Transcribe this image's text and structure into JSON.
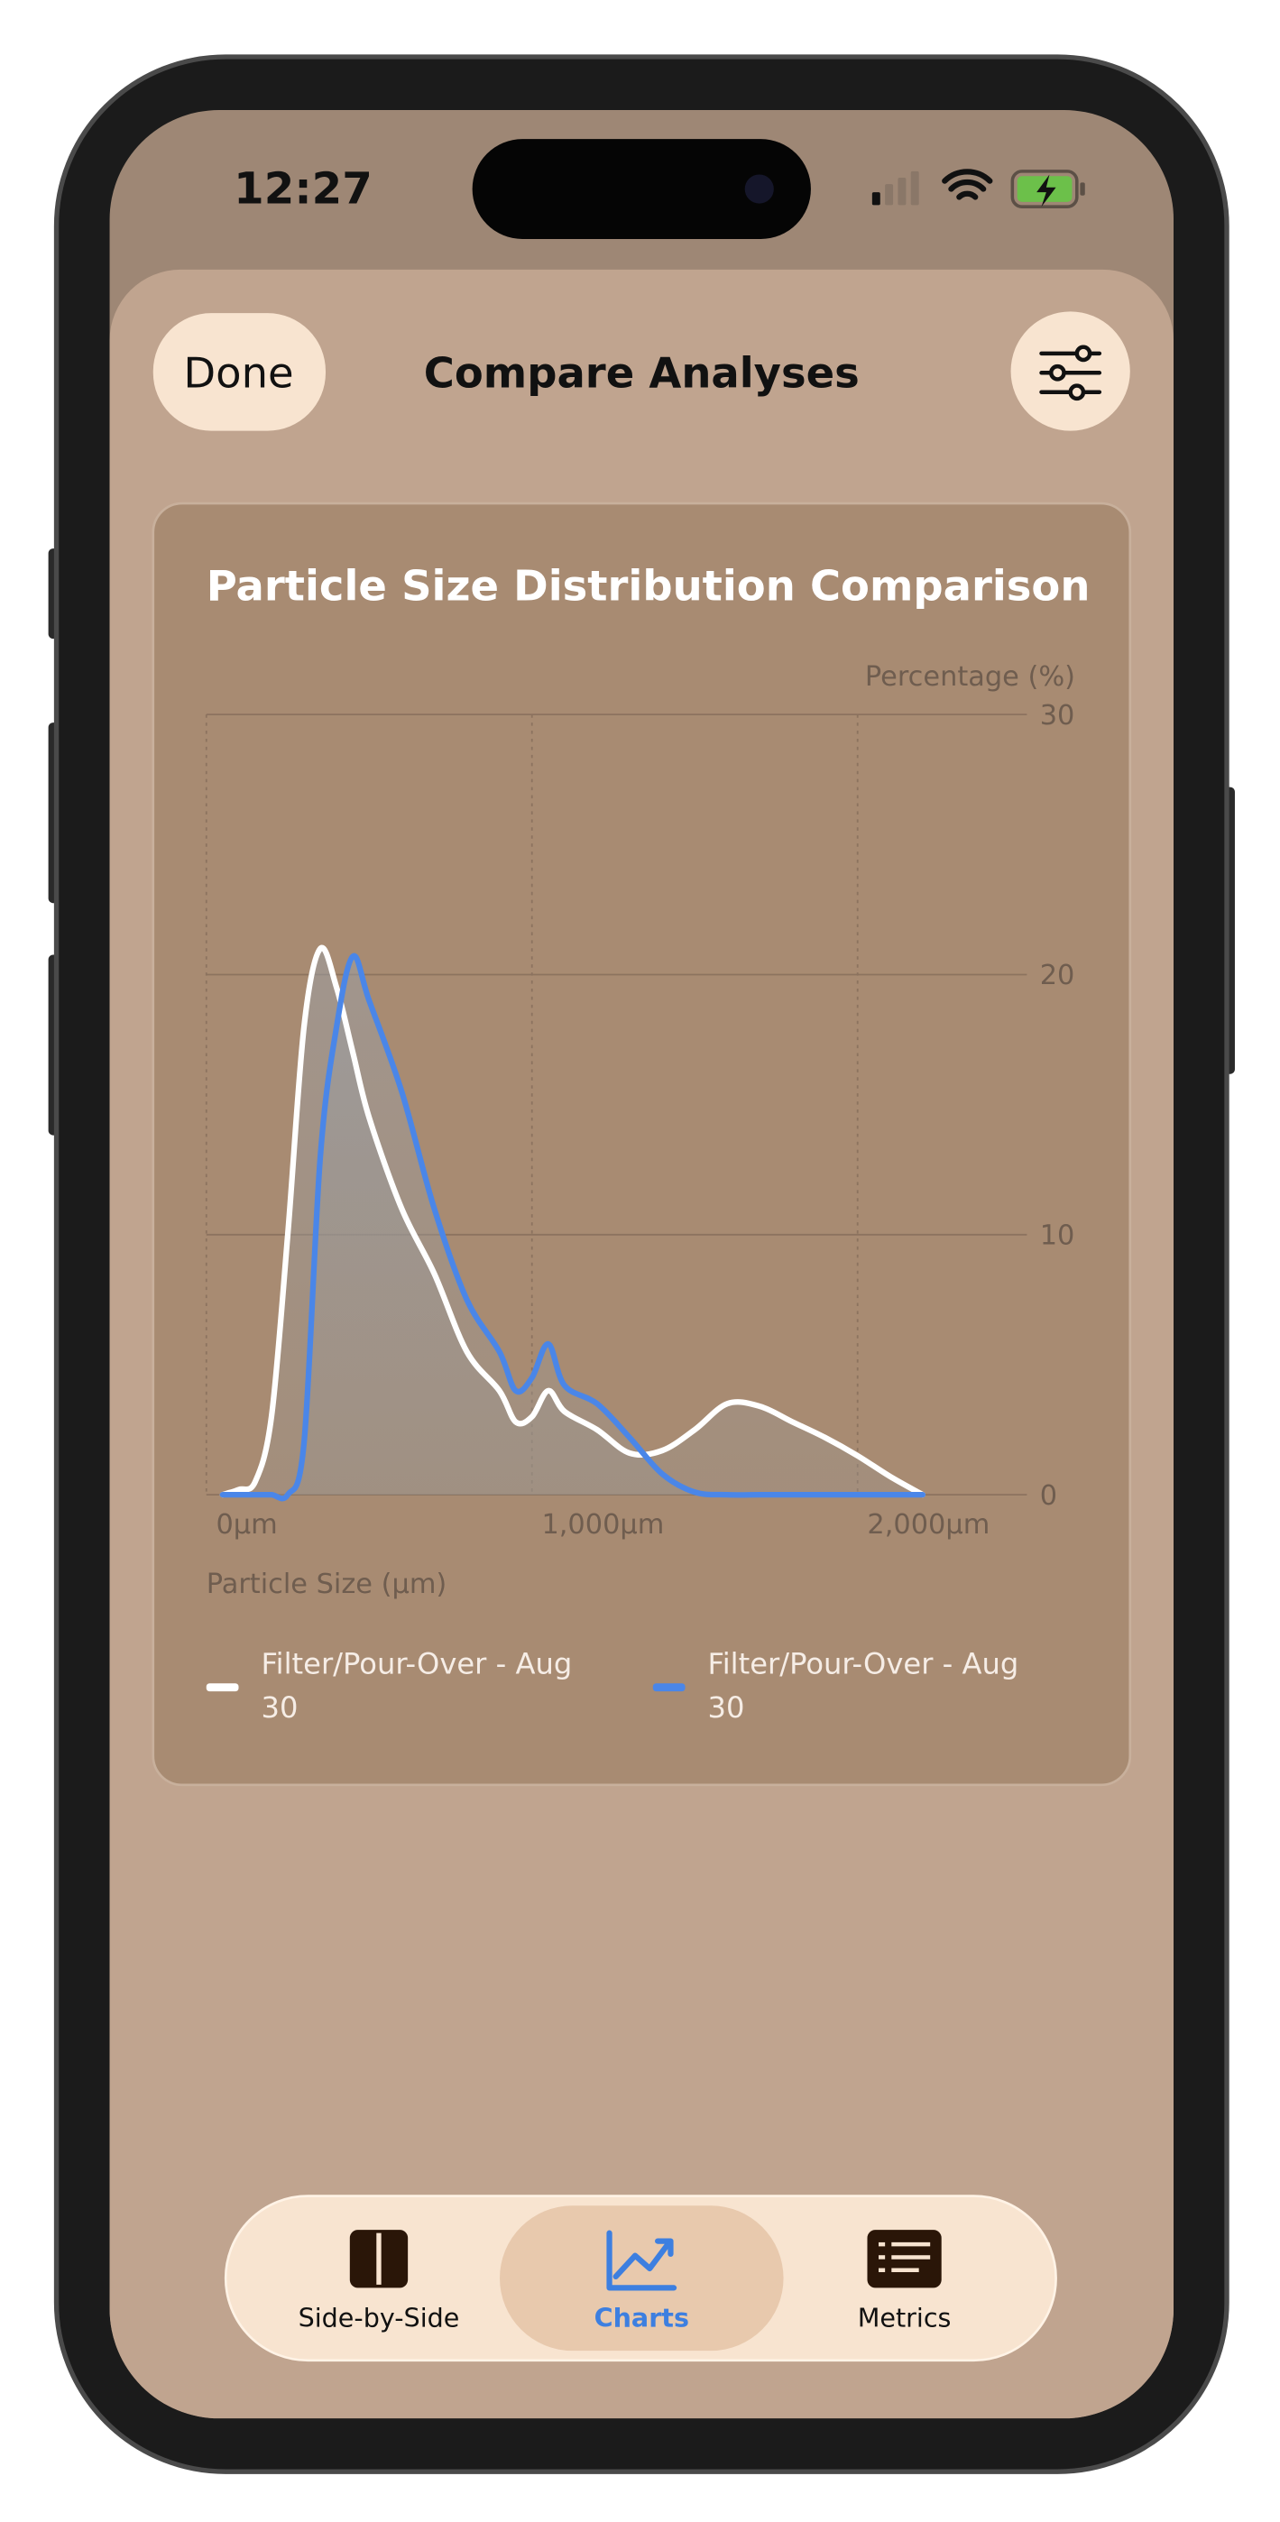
{
  "status_bar": {
    "time": "12:27"
  },
  "nav": {
    "done": "Done",
    "title": "Compare Analyses"
  },
  "chart_data": {
    "type": "line",
    "title": "Particle Size Distribution Comparison",
    "y_label": "Percentage (%)",
    "x_label": "Particle Size (µm)",
    "x": [
      50,
      100,
      150,
      200,
      250,
      300,
      350,
      400,
      450,
      500,
      600,
      700,
      800,
      900,
      950,
      1000,
      1050,
      1100,
      1200,
      1300,
      1400,
      1500,
      1600,
      1700,
      1800,
      1900,
      2000,
      2100,
      2200
    ],
    "series": [
      {
        "name": "Filter/Pour-Over - Aug 30",
        "color": "#ffffff",
        "values": [
          0,
          0.2,
          0.5,
          3,
          10,
          18,
          21,
          19.5,
          17,
          14.5,
          11,
          8.5,
          5.5,
          4,
          2.8,
          3,
          4,
          3.2,
          2.5,
          1.6,
          1.7,
          2.5,
          3.5,
          3.4,
          2.8,
          2.2,
          1.5,
          0.7,
          0
        ]
      },
      {
        "name": "Filter/Pour-Over - Aug 30",
        "color": "#4a86e8",
        "values": [
          0,
          0,
          0,
          0,
          0,
          2,
          13,
          18,
          20.7,
          19,
          15.5,
          11,
          7.5,
          5.5,
          4,
          4.5,
          5.8,
          4.2,
          3.5,
          2.2,
          0.8,
          0.1,
          0,
          0,
          0,
          0,
          0,
          0,
          0
        ]
      }
    ],
    "xlim": [
      0,
      2520
    ],
    "xticks": [
      {
        "value": 0,
        "label": "0µm"
      },
      {
        "value": 1000,
        "label": "1,000µm"
      },
      {
        "value": 2000,
        "label": "2,000µm"
      }
    ],
    "ylim": [
      0,
      30
    ],
    "yticks": [
      0,
      10,
      20,
      30
    ],
    "grid": true
  },
  "tabs": [
    "Side-by-Side",
    "Charts",
    "Metrics"
  ]
}
